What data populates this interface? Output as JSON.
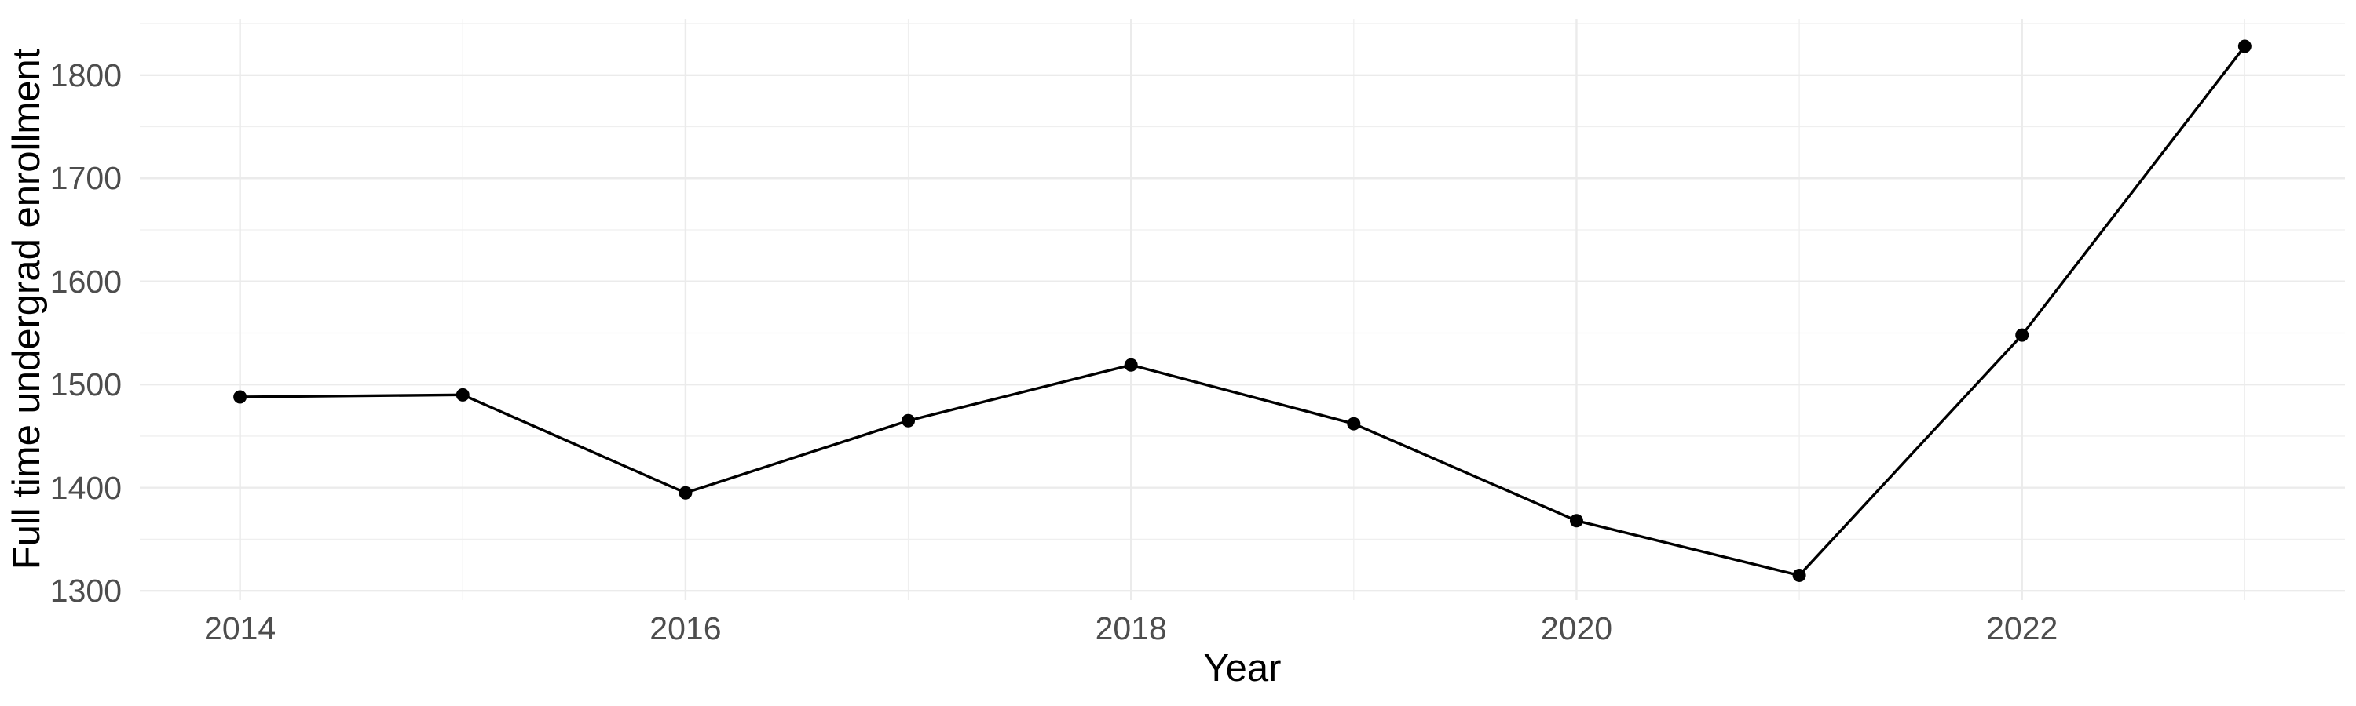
{
  "chart_data": {
    "type": "line",
    "title": "",
    "xlabel": "Year",
    "ylabel": "Full time undergrad enrollment",
    "x": [
      2014,
      2015,
      2016,
      2017,
      2018,
      2019,
      2020,
      2021,
      2022,
      2023
    ],
    "series": [
      {
        "name": "Full time undergrad enrollment",
        "values": [
          1488,
          1490,
          1395,
          1465,
          1519,
          1462,
          1368,
          1315,
          1548,
          1828
        ]
      }
    ],
    "x_ticks_major": [
      2014,
      2016,
      2018,
      2020,
      2022
    ],
    "x_tick_labels": [
      "2014",
      "2016",
      "2018",
      "2020",
      "2022"
    ],
    "x_ticks_minor": [
      2015,
      2017,
      2019,
      2021,
      2023
    ],
    "y_ticks_major": [
      1300,
      1400,
      1500,
      1600,
      1700,
      1800
    ],
    "y_tick_labels": [
      "1300",
      "1400",
      "1500",
      "1600",
      "1700",
      "1800"
    ],
    "y_ticks_minor": [
      1350,
      1450,
      1550,
      1650,
      1750,
      1850
    ],
    "xlim": [
      2013.55,
      2023.45
    ],
    "ylim": [
      1291,
      1854.6
    ],
    "grid": "major and minor, no panel border, no tick marks",
    "legend": "none",
    "marker": "filled circle",
    "colors": {
      "line": "#000000",
      "point": "#000000",
      "grid_major": "#ebebeb",
      "grid_minor": "#efefef",
      "tick_label": "#4d4d4d",
      "axis_title": "#000000",
      "background": "#ffffff"
    }
  }
}
